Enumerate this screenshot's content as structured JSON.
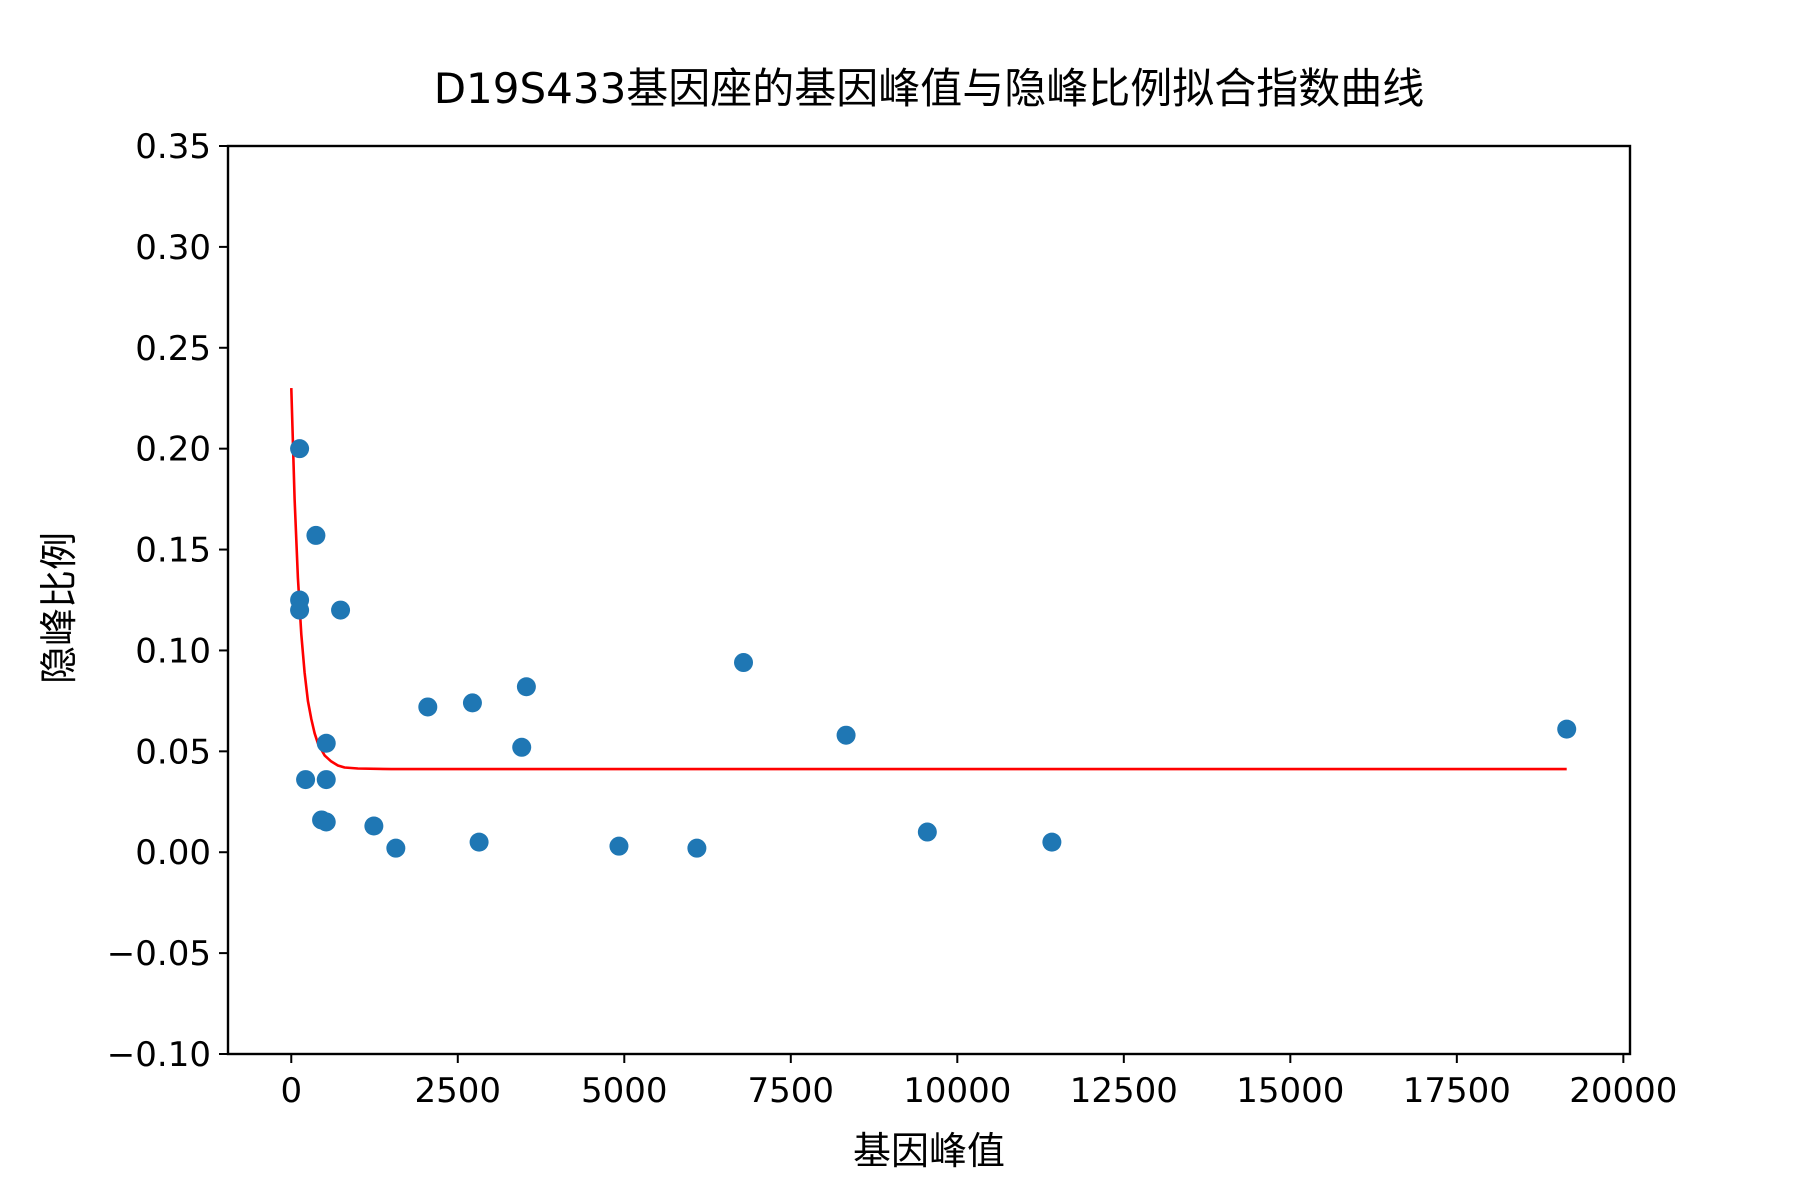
{
  "chart_data": {
    "type": "scatter",
    "title": "D19S433基因座的基因峰值与隐峰比例拟合指数曲线",
    "xlabel": "基因峰值",
    "ylabel": "隐峰比例",
    "xlim": [
      -950,
      20100
    ],
    "ylim": [
      -0.1,
      0.35
    ],
    "xticks": [
      0,
      2500,
      5000,
      7500,
      10000,
      12500,
      15000,
      17500,
      20000
    ],
    "xtick_labels": [
      "0",
      "2500",
      "5000",
      "7500",
      "10000",
      "12500",
      "15000",
      "17500",
      "20000"
    ],
    "yticks": [
      -0.1,
      -0.05,
      0.0,
      0.05,
      0.1,
      0.15,
      0.2,
      0.25,
      0.3,
      0.35
    ],
    "ytick_labels": [
      "−0.10",
      "−0.05",
      "0.00",
      "0.05",
      "0.10",
      "0.15",
      "0.20",
      "0.25",
      "0.30",
      "0.35"
    ],
    "grid": false,
    "colors": {
      "points": "#1f77b4",
      "fit_curve": "#ff0000",
      "axes": "#000000"
    },
    "series": [
      {
        "kind": "scatter",
        "x": [
          125,
          125,
          125,
          370,
          740,
          525,
          215,
          525,
          455,
          525,
          1240,
          1570,
          2050,
          2720,
          2820,
          3460,
          3530,
          4920,
          6090,
          6790,
          8330,
          9550,
          11420,
          19150
        ],
        "y": [
          0.2,
          0.125,
          0.12,
          0.157,
          0.12,
          0.054,
          0.036,
          0.036,
          0.016,
          0.015,
          0.013,
          0.002,
          0.072,
          0.074,
          0.005,
          0.052,
          0.082,
          0.003,
          0.002,
          0.094,
          0.058,
          0.01,
          0.005,
          0.061
        ]
      },
      {
        "kind": "line",
        "x": [
          0,
          50,
          100,
          150,
          200,
          250,
          300,
          350,
          400,
          450,
          500,
          600,
          700,
          800,
          1000,
          1500,
          2000,
          5000,
          10000,
          15000,
          19150
        ],
        "y": [
          0.23,
          0.175,
          0.136,
          0.108,
          0.089,
          0.075,
          0.066,
          0.059,
          0.054,
          0.051,
          0.048,
          0.045,
          0.043,
          0.042,
          0.0415,
          0.0412,
          0.0412,
          0.0412,
          0.0412,
          0.0412,
          0.0412
        ]
      }
    ]
  }
}
